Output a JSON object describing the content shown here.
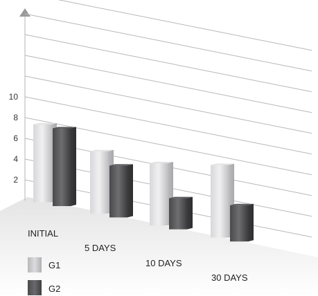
{
  "chart_data": {
    "type": "bar",
    "categories": [
      "INITIAL",
      "5 DAYS",
      "10 DAYS",
      "30 DAYS"
    ],
    "series": [
      {
        "name": "G1",
        "values": [
          7.5,
          6.0,
          6.0,
          7.0
        ],
        "color": "#c4c4c6"
      },
      {
        "name": "G2",
        "values": [
          7.5,
          5.0,
          3.0,
          3.5
        ],
        "color": "#4a4a4c"
      }
    ],
    "y_ticks": [
      "2",
      "4",
      "6",
      "8",
      "10"
    ],
    "ylim": [
      0,
      20
    ],
    "grid": true,
    "legend_position": "bottom-left",
    "title": "",
    "xlabel": "",
    "ylabel": ""
  }
}
